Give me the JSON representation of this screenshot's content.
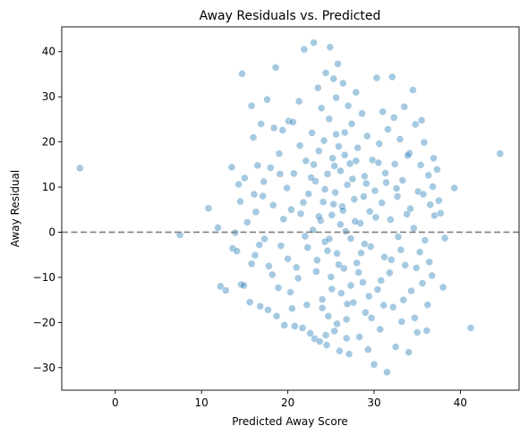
{
  "chart_data": {
    "type": "scatter",
    "title": "Away Residuals vs. Predicted",
    "xlabel": "Predicted Away Score",
    "ylabel": "Away Residual",
    "xlim": [
      -6.2,
      46.8
    ],
    "ylim": [
      -35,
      45.5
    ],
    "xticks": [
      0,
      10,
      20,
      30,
      40
    ],
    "yticks": [
      -30,
      -20,
      -10,
      0,
      10,
      20,
      30,
      40
    ],
    "grid": false,
    "reference_line": {
      "y": 0,
      "style": "dashed",
      "color": "#808080"
    },
    "marker_color": "#1f77b4",
    "marker_alpha": 0.4,
    "series": [
      {
        "points": [
          [
            -4.1,
            14.2
          ],
          [
            7.5,
            -0.6
          ],
          [
            10.8,
            5.3
          ],
          [
            11.9,
            1.0
          ],
          [
            12.2,
            -12.0
          ],
          [
            12.8,
            -12.9
          ],
          [
            13.5,
            14.4
          ],
          [
            13.6,
            -3.6
          ],
          [
            14.1,
            -4.2
          ],
          [
            14.3,
            10.6
          ],
          [
            14.6,
            -11.6
          ],
          [
            14.7,
            35.1
          ],
          [
            14.9,
            -11.8
          ],
          [
            15.0,
            12.0
          ],
          [
            15.3,
            2.2
          ],
          [
            15.6,
            -15.5
          ],
          [
            15.8,
            28.0
          ],
          [
            16.0,
            21.0
          ],
          [
            16.2,
            -5.1
          ],
          [
            16.5,
            14.8
          ],
          [
            16.8,
            -16.4
          ],
          [
            16.9,
            24.0
          ],
          [
            17.1,
            8.0
          ],
          [
            17.3,
            -1.5
          ],
          [
            17.6,
            29.4
          ],
          [
            17.7,
            -17.2
          ],
          [
            18.0,
            14.3
          ],
          [
            18.2,
            -9.4
          ],
          [
            18.4,
            23.1
          ],
          [
            18.6,
            36.5
          ],
          [
            18.7,
            -18.6
          ],
          [
            19.0,
            17.4
          ],
          [
            19.2,
            -3.0
          ],
          [
            19.4,
            22.6
          ],
          [
            19.6,
            -20.6
          ],
          [
            19.9,
            9.8
          ],
          [
            20.1,
            24.6
          ],
          [
            20.3,
            -13.3
          ],
          [
            20.4,
            5.0
          ],
          [
            20.6,
            24.4
          ],
          [
            20.8,
            -20.8
          ],
          [
            21.0,
            -7.8
          ],
          [
            21.3,
            29.0
          ],
          [
            21.5,
            4.1
          ],
          [
            21.7,
            -21.2
          ],
          [
            21.9,
            40.5
          ],
          [
            22.1,
            15.8
          ],
          [
            22.2,
            -16.1
          ],
          [
            22.4,
            8.5
          ],
          [
            22.6,
            -22.4
          ],
          [
            22.8,
            22.0
          ],
          [
            22.9,
            0.5
          ],
          [
            23.0,
            42.0
          ],
          [
            23.1,
            -23.6
          ],
          [
            23.2,
            11.3
          ],
          [
            23.4,
            -6.2
          ],
          [
            23.5,
            32.0
          ],
          [
            23.6,
            18.0
          ],
          [
            23.7,
            -24.2
          ],
          [
            23.8,
            2.6
          ],
          [
            23.9,
            27.5
          ],
          [
            24.0,
            -14.9
          ],
          [
            24.1,
            6.7
          ],
          [
            24.2,
            20.3
          ],
          [
            24.3,
            -2.1
          ],
          [
            24.4,
            35.3
          ],
          [
            24.5,
            -25.0
          ],
          [
            24.6,
            12.9
          ],
          [
            24.7,
            -18.6
          ],
          [
            24.8,
            25.1
          ],
          [
            24.9,
            41.0
          ],
          [
            25.0,
            -9.9
          ],
          [
            25.1,
            3.8
          ],
          [
            25.2,
            16.4
          ],
          [
            25.3,
            34.0
          ],
          [
            25.4,
            -21.9
          ],
          [
            25.5,
            8.8
          ],
          [
            25.6,
            29.8
          ],
          [
            25.7,
            -4.7
          ],
          [
            25.8,
            37.3
          ],
          [
            25.9,
            19.0
          ],
          [
            26.0,
            -26.3
          ],
          [
            26.1,
            13.6
          ],
          [
            26.2,
            -13.5
          ],
          [
            26.3,
            5.7
          ],
          [
            26.4,
            33.0
          ],
          [
            26.5,
            -8.0
          ],
          [
            26.6,
            22.1
          ],
          [
            26.7,
            0.2
          ],
          [
            26.8,
            -19.3
          ],
          [
            26.9,
            10.5
          ],
          [
            27.0,
            28.0
          ],
          [
            27.1,
            -27.0
          ],
          [
            27.2,
            15.2
          ],
          [
            27.3,
            -1.4
          ],
          [
            27.4,
            24.0
          ],
          [
            27.6,
            -15.6
          ],
          [
            27.7,
            7.3
          ],
          [
            27.9,
            31.0
          ],
          [
            28.0,
            -6.8
          ],
          [
            28.1,
            18.7
          ],
          [
            28.3,
            -23.2
          ],
          [
            28.4,
            2.0
          ],
          [
            28.6,
            26.3
          ],
          [
            28.7,
            -11.1
          ],
          [
            28.9,
            12.4
          ],
          [
            29.0,
            -17.8
          ],
          [
            29.2,
            21.3
          ],
          [
            29.3,
            -26.0
          ],
          [
            29.5,
            4.6
          ],
          [
            29.6,
            -3.2
          ],
          [
            29.8,
            16.0
          ],
          [
            30.0,
            -29.3
          ],
          [
            30.1,
            9.2
          ],
          [
            30.3,
            34.2
          ],
          [
            30.4,
            -12.7
          ],
          [
            30.6,
            19.6
          ],
          [
            30.7,
            -21.5
          ],
          [
            30.9,
            6.5
          ],
          [
            31.0,
            26.7
          ],
          [
            31.2,
            -5.5
          ],
          [
            31.3,
            13.1
          ],
          [
            31.5,
            -31.0
          ],
          [
            31.6,
            22.8
          ],
          [
            31.8,
            -9.0
          ],
          [
            31.9,
            2.8
          ],
          [
            32.1,
            34.4
          ],
          [
            32.2,
            -16.6
          ],
          [
            32.4,
            15.1
          ],
          [
            32.5,
            -25.4
          ],
          [
            32.7,
            7.9
          ],
          [
            32.8,
            -1.0
          ],
          [
            33.0,
            20.6
          ],
          [
            33.2,
            -19.8
          ],
          [
            33.3,
            11.5
          ],
          [
            33.5,
            27.8
          ],
          [
            33.6,
            -7.3
          ],
          [
            33.8,
            4.0
          ],
          [
            34.0,
            -26.6
          ],
          [
            34.1,
            17.5
          ],
          [
            34.3,
            -13.0
          ],
          [
            34.5,
            31.5
          ],
          [
            34.6,
            0.9
          ],
          [
            34.8,
            23.9
          ],
          [
            35.0,
            -22.2
          ],
          [
            35.1,
            9.0
          ],
          [
            35.3,
            -4.4
          ],
          [
            35.4,
            14.9
          ],
          [
            35.6,
            -11.3
          ],
          [
            35.8,
            19.9
          ],
          [
            35.9,
            -1.8
          ],
          [
            36.1,
            -21.8
          ],
          [
            36.3,
            12.6
          ],
          [
            36.5,
            6.1
          ],
          [
            36.7,
            -9.6
          ],
          [
            37.0,
            3.7
          ],
          [
            37.3,
            13.9
          ],
          [
            37.7,
            4.2
          ],
          [
            38.0,
            -12.2
          ],
          [
            38.2,
            -1.3
          ],
          [
            39.3,
            9.8
          ],
          [
            41.2,
            -21.2
          ],
          [
            44.6,
            17.4
          ],
          [
            16.3,
            4.5
          ],
          [
            16.7,
            -2.8
          ],
          [
            17.2,
            11.2
          ],
          [
            17.8,
            -7.5
          ],
          [
            18.3,
            6.0
          ],
          [
            18.9,
            -12.3
          ],
          [
            19.5,
            2.9
          ],
          [
            20.0,
            -5.9
          ],
          [
            20.7,
            13.0
          ],
          [
            21.2,
            -10.2
          ],
          [
            21.8,
            6.6
          ],
          [
            22.3,
            -3.4
          ],
          [
            22.7,
            12.1
          ],
          [
            23.3,
            -8.7
          ],
          [
            24.3,
            9.5
          ],
          [
            24.6,
            -4.1
          ],
          [
            25.1,
            -12.6
          ],
          [
            25.4,
            14.7
          ],
          [
            25.9,
            -7.2
          ],
          [
            26.4,
            4.8
          ],
          [
            26.9,
            -15.9
          ],
          [
            27.5,
            11.8
          ],
          [
            28.2,
            -8.9
          ],
          [
            28.8,
            7.9
          ],
          [
            29.4,
            -14.2
          ],
          [
            30.2,
            3.3
          ],
          [
            30.8,
            -10.7
          ],
          [
            31.4,
            11.0
          ],
          [
            32.0,
            -6.1
          ],
          [
            32.6,
            9.7
          ],
          [
            33.4,
            -15.0
          ],
          [
            34.2,
            5.2
          ],
          [
            34.9,
            -7.9
          ],
          [
            35.7,
            8.4
          ],
          [
            36.4,
            -6.6
          ],
          [
            36.8,
            10.1
          ],
          [
            23.6,
            3.5
          ],
          [
            24.0,
            -16.8
          ],
          [
            24.8,
            -1.5
          ],
          [
            25.3,
            6.2
          ],
          [
            25.7,
            -20.3
          ],
          [
            26.1,
            1.7
          ],
          [
            26.6,
            17.1
          ],
          [
            27.3,
            -11.8
          ],
          [
            27.8,
            2.4
          ],
          [
            28.5,
            -4.6
          ],
          [
            29.1,
            10.8
          ],
          [
            29.7,
            -19.0
          ],
          [
            15.8,
            -7.0
          ],
          [
            16.1,
            8.4
          ],
          [
            19.1,
            12.9
          ],
          [
            20.5,
            -16.9
          ],
          [
            21.4,
            19.2
          ],
          [
            22.0,
            -0.9
          ],
          [
            23.0,
            15.0
          ],
          [
            24.4,
            -22.8
          ],
          [
            25.6,
            21.7
          ],
          [
            26.8,
            -23.5
          ],
          [
            27.9,
            15.8
          ],
          [
            28.9,
            -2.6
          ],
          [
            30.5,
            15.4
          ],
          [
            31.1,
            -16.2
          ],
          [
            32.3,
            25.4
          ],
          [
            33.1,
            -3.9
          ],
          [
            33.9,
            17.0
          ],
          [
            34.7,
            -19.0
          ],
          [
            35.5,
            24.8
          ],
          [
            36.2,
            -16.1
          ],
          [
            14.5,
            6.8
          ],
          [
            13.9,
            -0.1
          ],
          [
            37.5,
            7.0
          ],
          [
            36.9,
            16.4
          ]
        ]
      }
    ]
  }
}
